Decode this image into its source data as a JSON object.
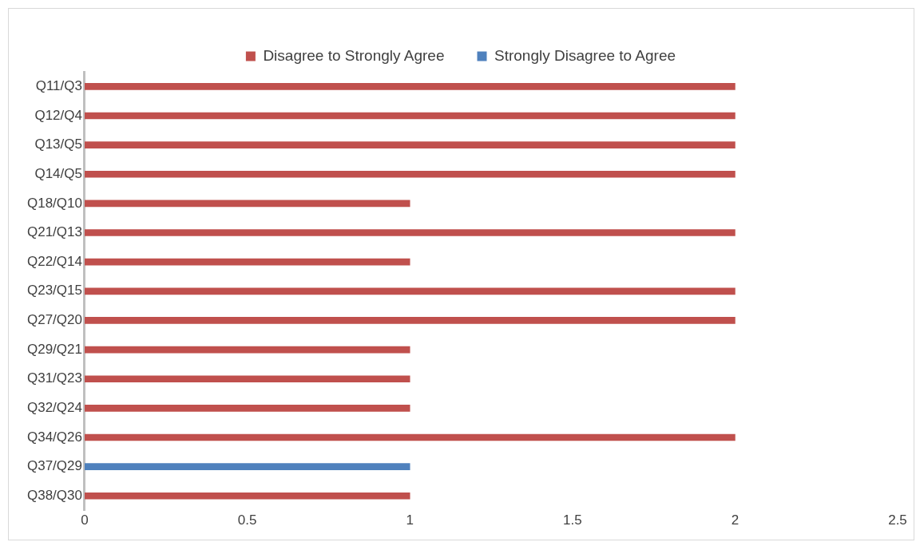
{
  "chart_data": {
    "type": "bar",
    "orientation": "horizontal",
    "categories": [
      "Q11/Q3",
      "Q12/Q4",
      "Q13/Q5",
      "Q14/Q5",
      "Q18/Q10",
      "Q21/Q13",
      "Q22/Q14",
      "Q23/Q15",
      "Q27/Q20",
      "Q29/Q21",
      "Q31/Q23",
      "Q32/Q24",
      "Q34/Q26",
      "Q37/Q29",
      "Q38/Q30"
    ],
    "series": [
      {
        "name": "Disagree to Strongly Agree",
        "color": "#c0504d",
        "values": [
          2,
          2,
          2,
          2,
          1,
          2,
          1,
          2,
          2,
          1,
          1,
          1,
          2,
          null,
          1
        ]
      },
      {
        "name": "Strongly Disagree to Agree",
        "color": "#4f81bd",
        "values": [
          null,
          null,
          null,
          null,
          null,
          null,
          null,
          null,
          null,
          null,
          null,
          null,
          null,
          1,
          null
        ]
      }
    ],
    "xlim": [
      0,
      2.5
    ],
    "xticks": [
      0,
      0.5,
      1,
      1.5,
      2,
      2.5
    ],
    "grid": false,
    "legend": "top"
  }
}
